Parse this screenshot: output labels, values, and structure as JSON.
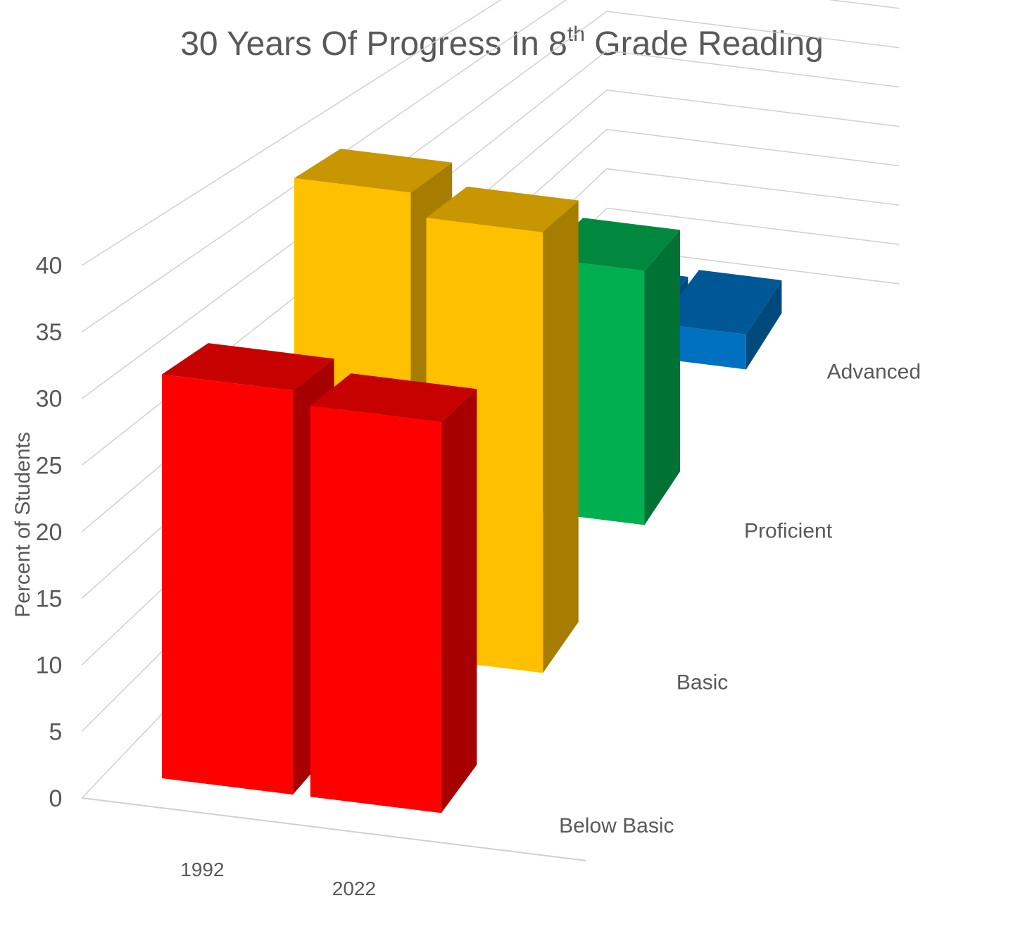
{
  "chart_data": {
    "type": "bar",
    "title": "30 Years Of Progress In 8",
    "title_superscript": "th",
    "title_suffix": " Grade Reading",
    "ylabel": "Percent of Students",
    "xlabel": "",
    "ylim": [
      0,
      40
    ],
    "yticks": [
      "0",
      "5",
      "10",
      "15",
      "20",
      "25",
      "30",
      "35",
      "40"
    ],
    "categories": [
      "1992",
      "2022"
    ],
    "series": [
      {
        "name": "Below Basic",
        "values": [
          31,
          30
        ],
        "color": "#ff0000"
      },
      {
        "name": "Basic",
        "values": [
          40,
          38
        ],
        "color": "#ffc000"
      },
      {
        "name": "Proficient",
        "values": [
          25,
          25
        ],
        "color": "#00b050"
      },
      {
        "name": "Advanced",
        "values": [
          3,
          4
        ],
        "color": "#0070c0"
      }
    ],
    "grid": true,
    "view": "3d-column"
  }
}
